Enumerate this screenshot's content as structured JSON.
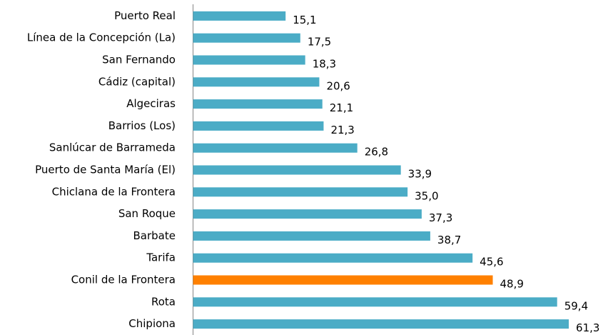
{
  "chart_data": {
    "type": "barh",
    "categories": [
      "Puerto Real",
      "Línea de la Concepción (La)",
      "San Fernando",
      "Cádiz (capital)",
      "Algeciras",
      "Barrios (Los)",
      "Sanlúcar de Barrameda",
      "Puerto de Santa María (El)",
      "Chiclana de la Frontera",
      "San Roque",
      "Barbate",
      "Tarifa",
      "Conil de la Frontera",
      "Rota",
      "Chipiona"
    ],
    "values": [
      15.1,
      17.5,
      18.3,
      20.6,
      21.1,
      21.3,
      26.8,
      33.9,
      35.0,
      37.3,
      38.7,
      45.6,
      48.9,
      59.4,
      61.3
    ],
    "value_labels": [
      "15,1",
      "17,5",
      "18,3",
      "20,6",
      "21,1",
      "21,3",
      "26,8",
      "33,9",
      "35,0",
      "37,3",
      "38,7",
      "45,6",
      "48,9",
      "59,4",
      "61,3"
    ],
    "colors": [
      "#4bacc6",
      "#4bacc6",
      "#4bacc6",
      "#4bacc6",
      "#4bacc6",
      "#4bacc6",
      "#4bacc6",
      "#4bacc6",
      "#4bacc6",
      "#4bacc6",
      "#4bacc6",
      "#4bacc6",
      "#ff8000",
      "#4bacc6",
      "#4bacc6"
    ],
    "xlim": [
      0,
      67
    ]
  }
}
